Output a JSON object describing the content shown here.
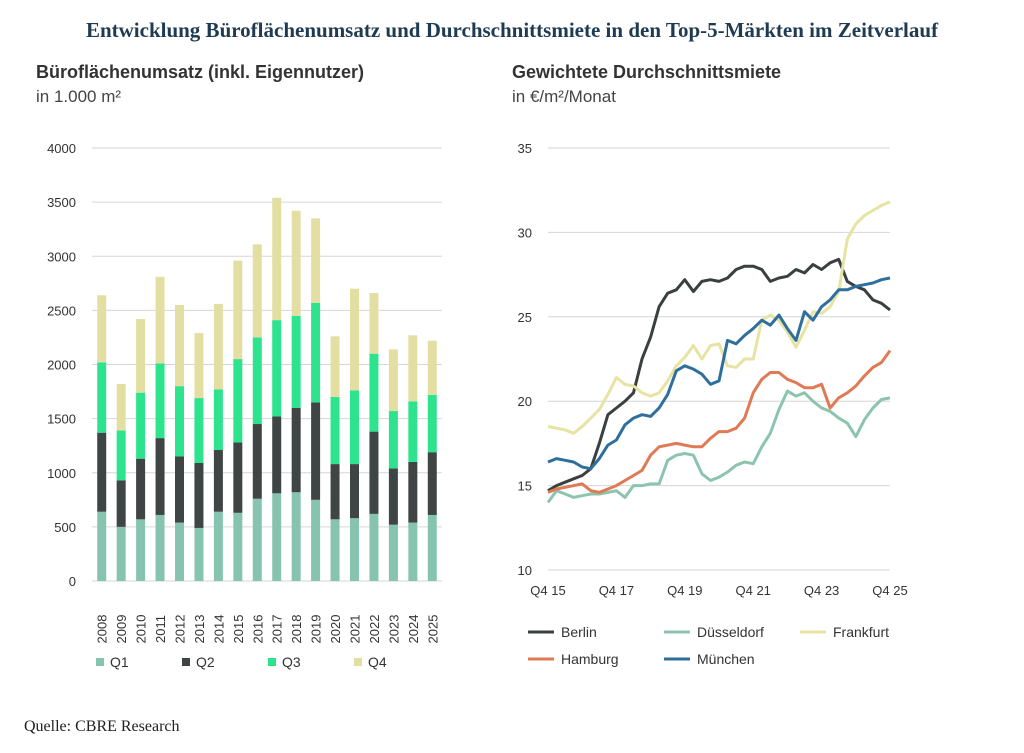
{
  "page_title": "Entwicklung Büroflächenumsatz und Durchschnittsmiete in den Top-5-Märkten im Zeitverlauf",
  "source": "Quelle: CBRE Research",
  "chart_data": [
    {
      "type": "bar",
      "stacked": true,
      "title": "Büroflächenumsatz (inkl. Eigennutzer)",
      "subtitle": "in 1.000 m²",
      "categories": [
        "2008",
        "2009",
        "2010",
        "2011",
        "2012",
        "2013",
        "2014",
        "2015",
        "2016",
        "2017",
        "2018",
        "2019",
        "2020",
        "2021",
        "2022",
        "2023",
        "2024",
        "2025"
      ],
      "ylim": [
        0,
        4000
      ],
      "yticks": [
        0,
        500,
        1000,
        1500,
        2000,
        2500,
        3000,
        3500,
        4000
      ],
      "grid": true,
      "legend_position": "bottom",
      "series": [
        {
          "name": "Q1",
          "color": "#86c4b0",
          "values": [
            640,
            500,
            570,
            610,
            540,
            490,
            640,
            630,
            760,
            810,
            820,
            750,
            570,
            580,
            620,
            520,
            540,
            610
          ]
        },
        {
          "name": "Q2",
          "color": "#3f4444",
          "values": [
            730,
            430,
            560,
            710,
            610,
            600,
            570,
            650,
            690,
            710,
            780,
            900,
            510,
            500,
            760,
            520,
            560,
            580
          ]
        },
        {
          "name": "Q3",
          "color": "#2ee38e",
          "values": [
            650,
            460,
            610,
            690,
            650,
            600,
            560,
            770,
            800,
            890,
            850,
            920,
            620,
            680,
            720,
            530,
            560,
            530
          ]
        },
        {
          "name": "Q4",
          "color": "#e3dfa3",
          "values": [
            620,
            430,
            680,
            800,
            750,
            600,
            790,
            910,
            860,
            1130,
            970,
            780,
            560,
            940,
            560,
            570,
            610,
            500
          ]
        }
      ]
    },
    {
      "type": "line",
      "title": "Gewichtete Durchschnittsmiete",
      "subtitle": "in €/m²/Monat",
      "x": [
        "Q4 15",
        "Q1 16",
        "Q2 16",
        "Q3 16",
        "Q4 16",
        "Q1 17",
        "Q2 17",
        "Q3 17",
        "Q4 17",
        "Q1 18",
        "Q2 18",
        "Q3 18",
        "Q4 18",
        "Q1 19",
        "Q2 19",
        "Q3 19",
        "Q4 19",
        "Q1 20",
        "Q2 20",
        "Q3 20",
        "Q4 20",
        "Q1 21",
        "Q2 21",
        "Q3 21",
        "Q4 21",
        "Q1 22",
        "Q2 22",
        "Q3 22",
        "Q4 22",
        "Q1 23",
        "Q2 23",
        "Q3 23",
        "Q4 23",
        "Q1 24",
        "Q2 24",
        "Q3 24",
        "Q4 24",
        "Q1 25",
        "Q2 25",
        "Q3 25",
        "Q4 25"
      ],
      "xtick_labels": [
        "Q4 15",
        "Q4 17",
        "Q4 19",
        "Q4 21",
        "Q4 23",
        "Q4 25"
      ],
      "ylim": [
        10,
        35
      ],
      "yticks": [
        10,
        15,
        20,
        25,
        30,
        35
      ],
      "grid": true,
      "legend_position": "bottom",
      "series": [
        {
          "name": "Berlin",
          "color": "#3a3f3f",
          "values": [
            14.7,
            15.0,
            15.2,
            15.4,
            15.6,
            16.0,
            17.5,
            19.2,
            19.6,
            20.0,
            20.5,
            22.5,
            23.8,
            25.6,
            26.4,
            26.6,
            27.2,
            26.5,
            27.1,
            27.2,
            27.1,
            27.3,
            27.8,
            28.0,
            28.0,
            27.8,
            27.1,
            27.3,
            27.4,
            27.8,
            27.6,
            28.1,
            27.8,
            28.2,
            28.4,
            27.1,
            26.8,
            26.6,
            26.0,
            25.8,
            25.4
          ]
        },
        {
          "name": "Düsseldorf",
          "color": "#8cc4ad",
          "values": [
            14.0,
            14.7,
            14.5,
            14.3,
            14.4,
            14.5,
            14.5,
            14.6,
            14.7,
            14.3,
            15.0,
            15.0,
            15.1,
            15.1,
            16.5,
            16.8,
            16.9,
            16.8,
            15.7,
            15.3,
            15.5,
            15.8,
            16.2,
            16.4,
            16.3,
            17.3,
            18.1,
            19.5,
            20.6,
            20.3,
            20.5,
            20.0,
            19.6,
            19.4,
            19.0,
            18.7,
            17.9,
            18.9,
            19.6,
            20.1,
            20.2
          ]
        },
        {
          "name": "Frankfurt",
          "color": "#e6e3a3",
          "values": [
            18.5,
            18.4,
            18.3,
            18.1,
            18.5,
            19.0,
            19.5,
            20.4,
            21.4,
            21.0,
            20.9,
            20.5,
            20.3,
            20.5,
            21.2,
            22.1,
            22.6,
            23.3,
            22.5,
            23.3,
            23.4,
            22.1,
            22.0,
            22.5,
            22.5,
            24.8,
            25.1,
            24.8,
            24.1,
            23.2,
            24.2,
            25.3,
            25.2,
            25.6,
            26.5,
            29.6,
            30.5,
            31.0,
            31.3,
            31.6,
            31.8
          ]
        },
        {
          "name": "Hamburg",
          "color": "#e07a55",
          "values": [
            14.6,
            14.8,
            14.9,
            15.0,
            15.1,
            14.7,
            14.6,
            14.8,
            15.0,
            15.3,
            15.6,
            15.9,
            16.8,
            17.3,
            17.4,
            17.5,
            17.4,
            17.3,
            17.3,
            17.8,
            18.2,
            18.2,
            18.4,
            19.0,
            20.5,
            21.3,
            21.7,
            21.7,
            21.3,
            21.1,
            20.8,
            20.8,
            21.0,
            19.6,
            20.2,
            20.5,
            20.9,
            21.5,
            22.0,
            22.3,
            23.0
          ]
        },
        {
          "name": "München",
          "color": "#2f6f9e",
          "values": [
            16.4,
            16.6,
            16.5,
            16.4,
            16.1,
            16.0,
            16.6,
            17.4,
            17.7,
            18.6,
            19.0,
            19.2,
            19.1,
            19.6,
            20.4,
            21.8,
            22.1,
            21.9,
            21.6,
            21.0,
            21.2,
            23.6,
            23.4,
            23.9,
            24.3,
            24.8,
            24.5,
            25.1,
            24.3,
            23.6,
            25.3,
            24.8,
            25.6,
            26.0,
            26.6,
            26.6,
            26.8,
            26.9,
            27.0,
            27.2,
            27.3
          ]
        }
      ]
    }
  ]
}
